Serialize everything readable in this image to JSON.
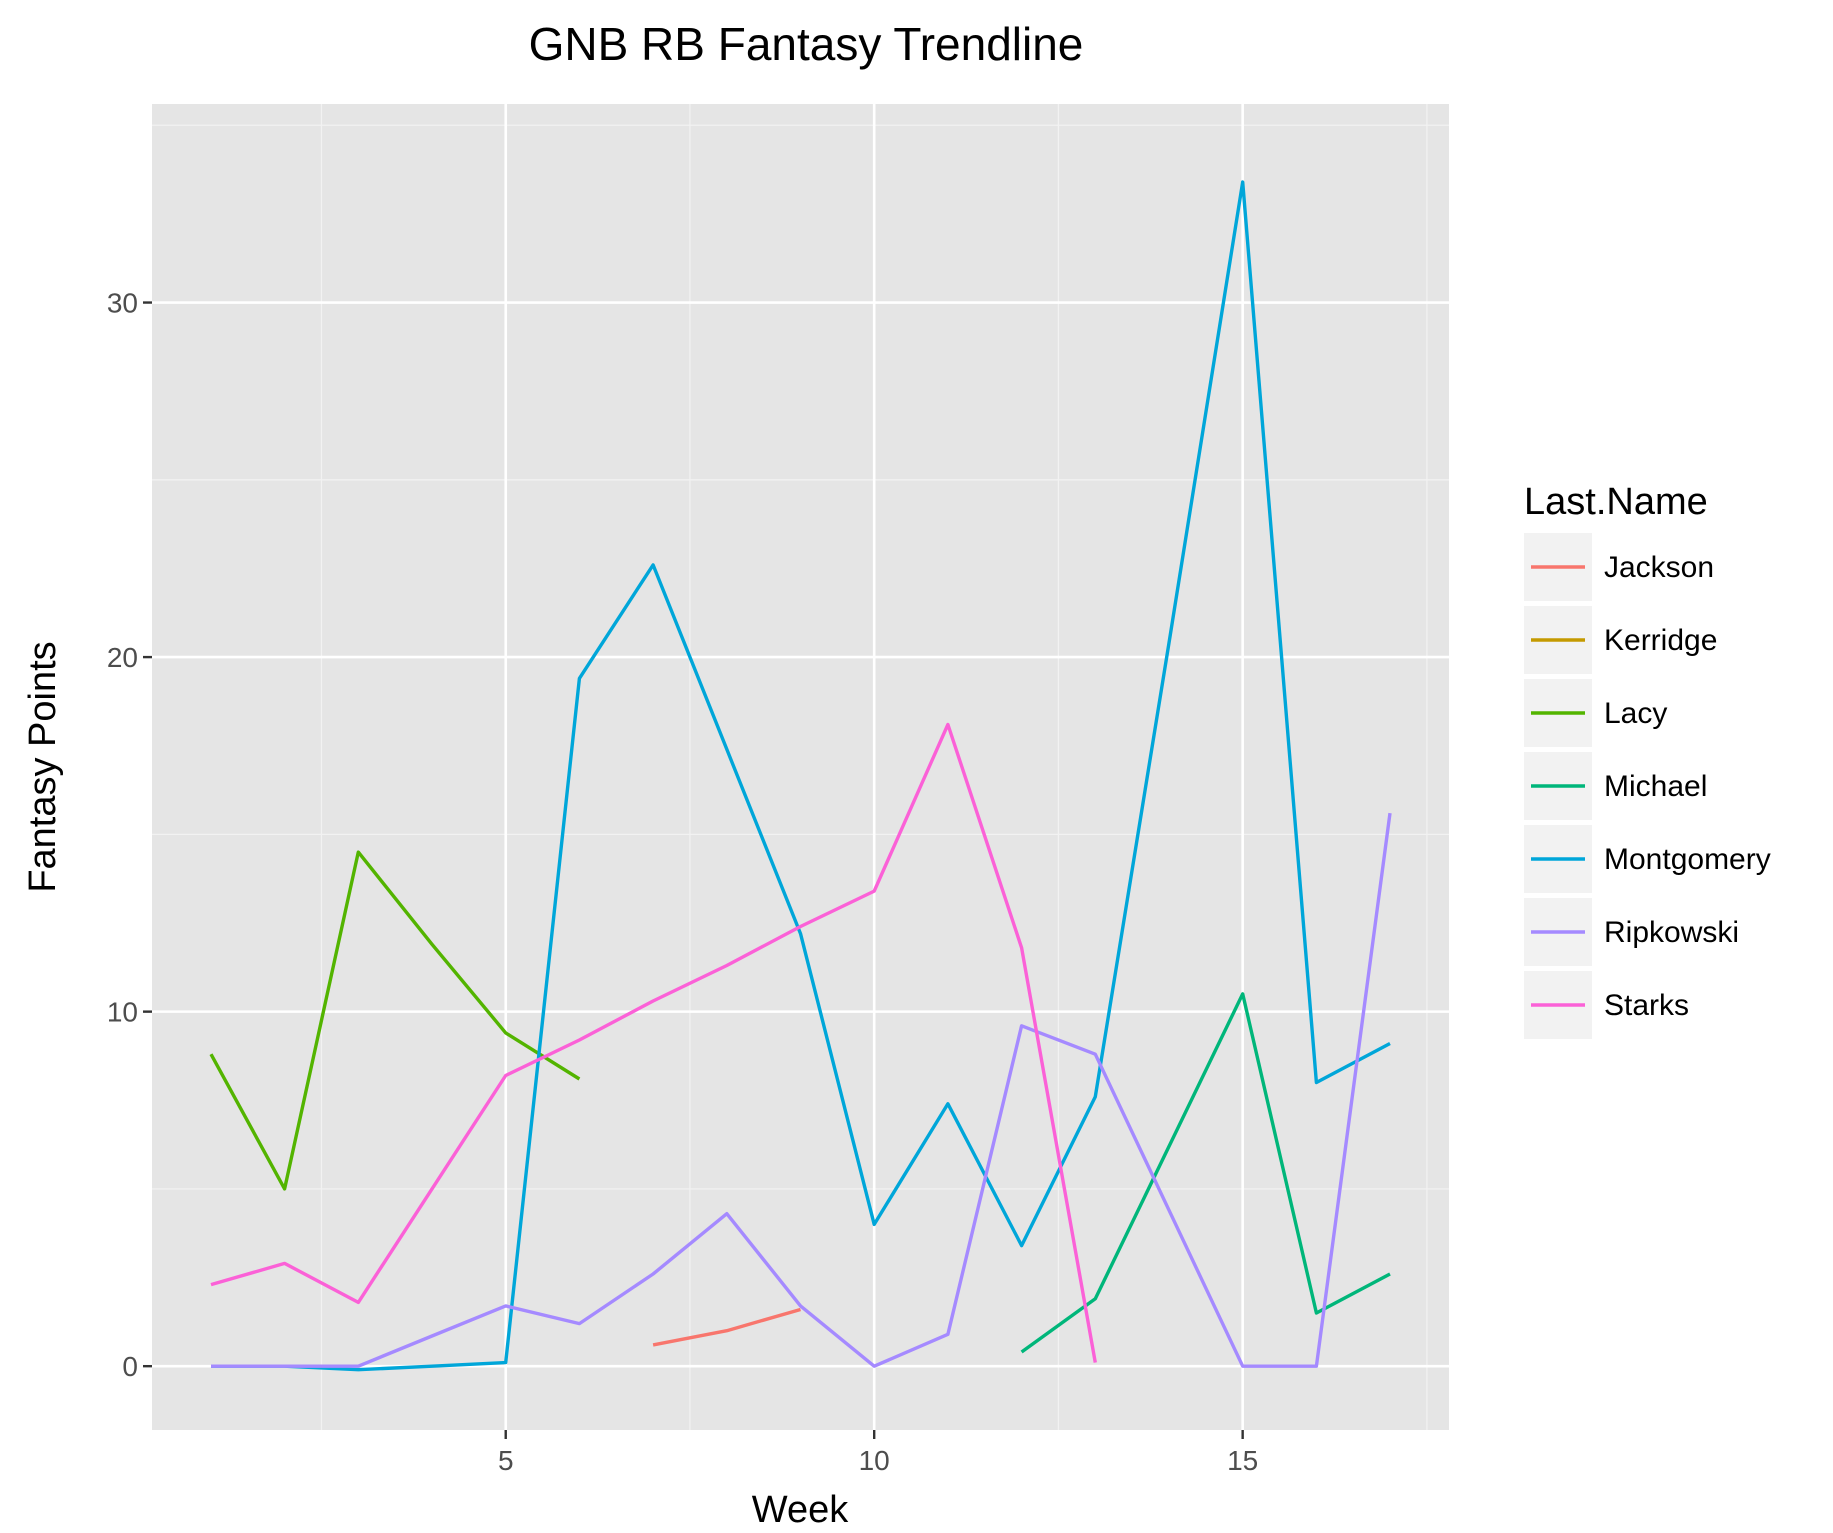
{
  "chart_data": {
    "type": "line",
    "title": "GNB RB Fantasy Trendline",
    "xlabel": "Week",
    "ylabel": "Fantasy Points",
    "xlim": [
      0.2,
      17.8
    ],
    "ylim": [
      -1.8,
      35.6
    ],
    "x_ticks": [
      5,
      10,
      15
    ],
    "y_ticks": [
      0,
      10,
      20,
      30
    ],
    "grid": true,
    "legend": {
      "title": "Last.Name",
      "position": "right"
    },
    "series": [
      {
        "name": "Jackson",
        "color": "#F8766D",
        "points": [
          [
            7,
            0.6
          ],
          [
            8,
            1.0
          ],
          [
            9,
            1.6
          ]
        ]
      },
      {
        "name": "Kerridge",
        "color": "#C49A00",
        "points": []
      },
      {
        "name": "Lacy",
        "color": "#53B400",
        "points": [
          [
            1,
            8.8
          ],
          [
            2,
            5.0
          ],
          [
            3,
            14.5
          ],
          [
            4,
            11.9
          ],
          [
            5,
            9.4
          ],
          [
            6,
            8.1
          ]
        ]
      },
      {
        "name": "Michael",
        "color": "#00B67A",
        "points": [
          [
            12,
            0.4
          ],
          [
            13,
            1.9
          ],
          [
            14,
            6.2
          ],
          [
            15,
            10.5
          ],
          [
            16,
            1.5
          ],
          [
            17,
            2.6
          ]
        ]
      },
      {
        "name": "Montgomery",
        "color": "#00A6D9",
        "points": [
          [
            1,
            0.0
          ],
          [
            2,
            0.0
          ],
          [
            3,
            -0.1
          ],
          [
            4,
            0.0
          ],
          [
            5,
            0.1
          ],
          [
            6,
            19.4
          ],
          [
            7,
            22.6
          ],
          [
            8,
            17.4
          ],
          [
            9,
            12.2
          ],
          [
            10,
            4.0
          ],
          [
            11,
            7.4
          ],
          [
            12,
            3.4
          ],
          [
            13,
            7.6
          ],
          [
            14,
            20.4
          ],
          [
            15,
            33.4
          ],
          [
            16,
            8.0
          ],
          [
            17,
            9.1
          ]
        ]
      },
      {
        "name": "Ripkowski",
        "color": "#A58AFF",
        "points": [
          [
            1,
            0.0
          ],
          [
            2,
            0.0
          ],
          [
            3,
            0.0
          ],
          [
            4,
            0.85
          ],
          [
            5,
            1.7
          ],
          [
            6,
            1.2
          ],
          [
            7,
            2.6
          ],
          [
            8,
            4.3
          ],
          [
            9,
            1.7
          ],
          [
            10,
            0.0
          ],
          [
            11,
            0.9
          ],
          [
            12,
            9.6
          ],
          [
            13,
            8.8
          ],
          [
            14,
            4.4
          ],
          [
            15,
            0.0
          ],
          [
            16,
            0.0
          ],
          [
            17,
            15.6
          ]
        ]
      },
      {
        "name": "Starks",
        "color": "#FB61D7",
        "points": [
          [
            1,
            2.3
          ],
          [
            2,
            2.9
          ],
          [
            3,
            1.8
          ],
          [
            4,
            5.0
          ],
          [
            5,
            8.2
          ],
          [
            6,
            9.2
          ],
          [
            7,
            10.3
          ],
          [
            8,
            11.3
          ],
          [
            9,
            12.4
          ],
          [
            10,
            13.4
          ],
          [
            11,
            18.1
          ],
          [
            12,
            11.8
          ],
          [
            13,
            0.1
          ]
        ]
      }
    ]
  }
}
